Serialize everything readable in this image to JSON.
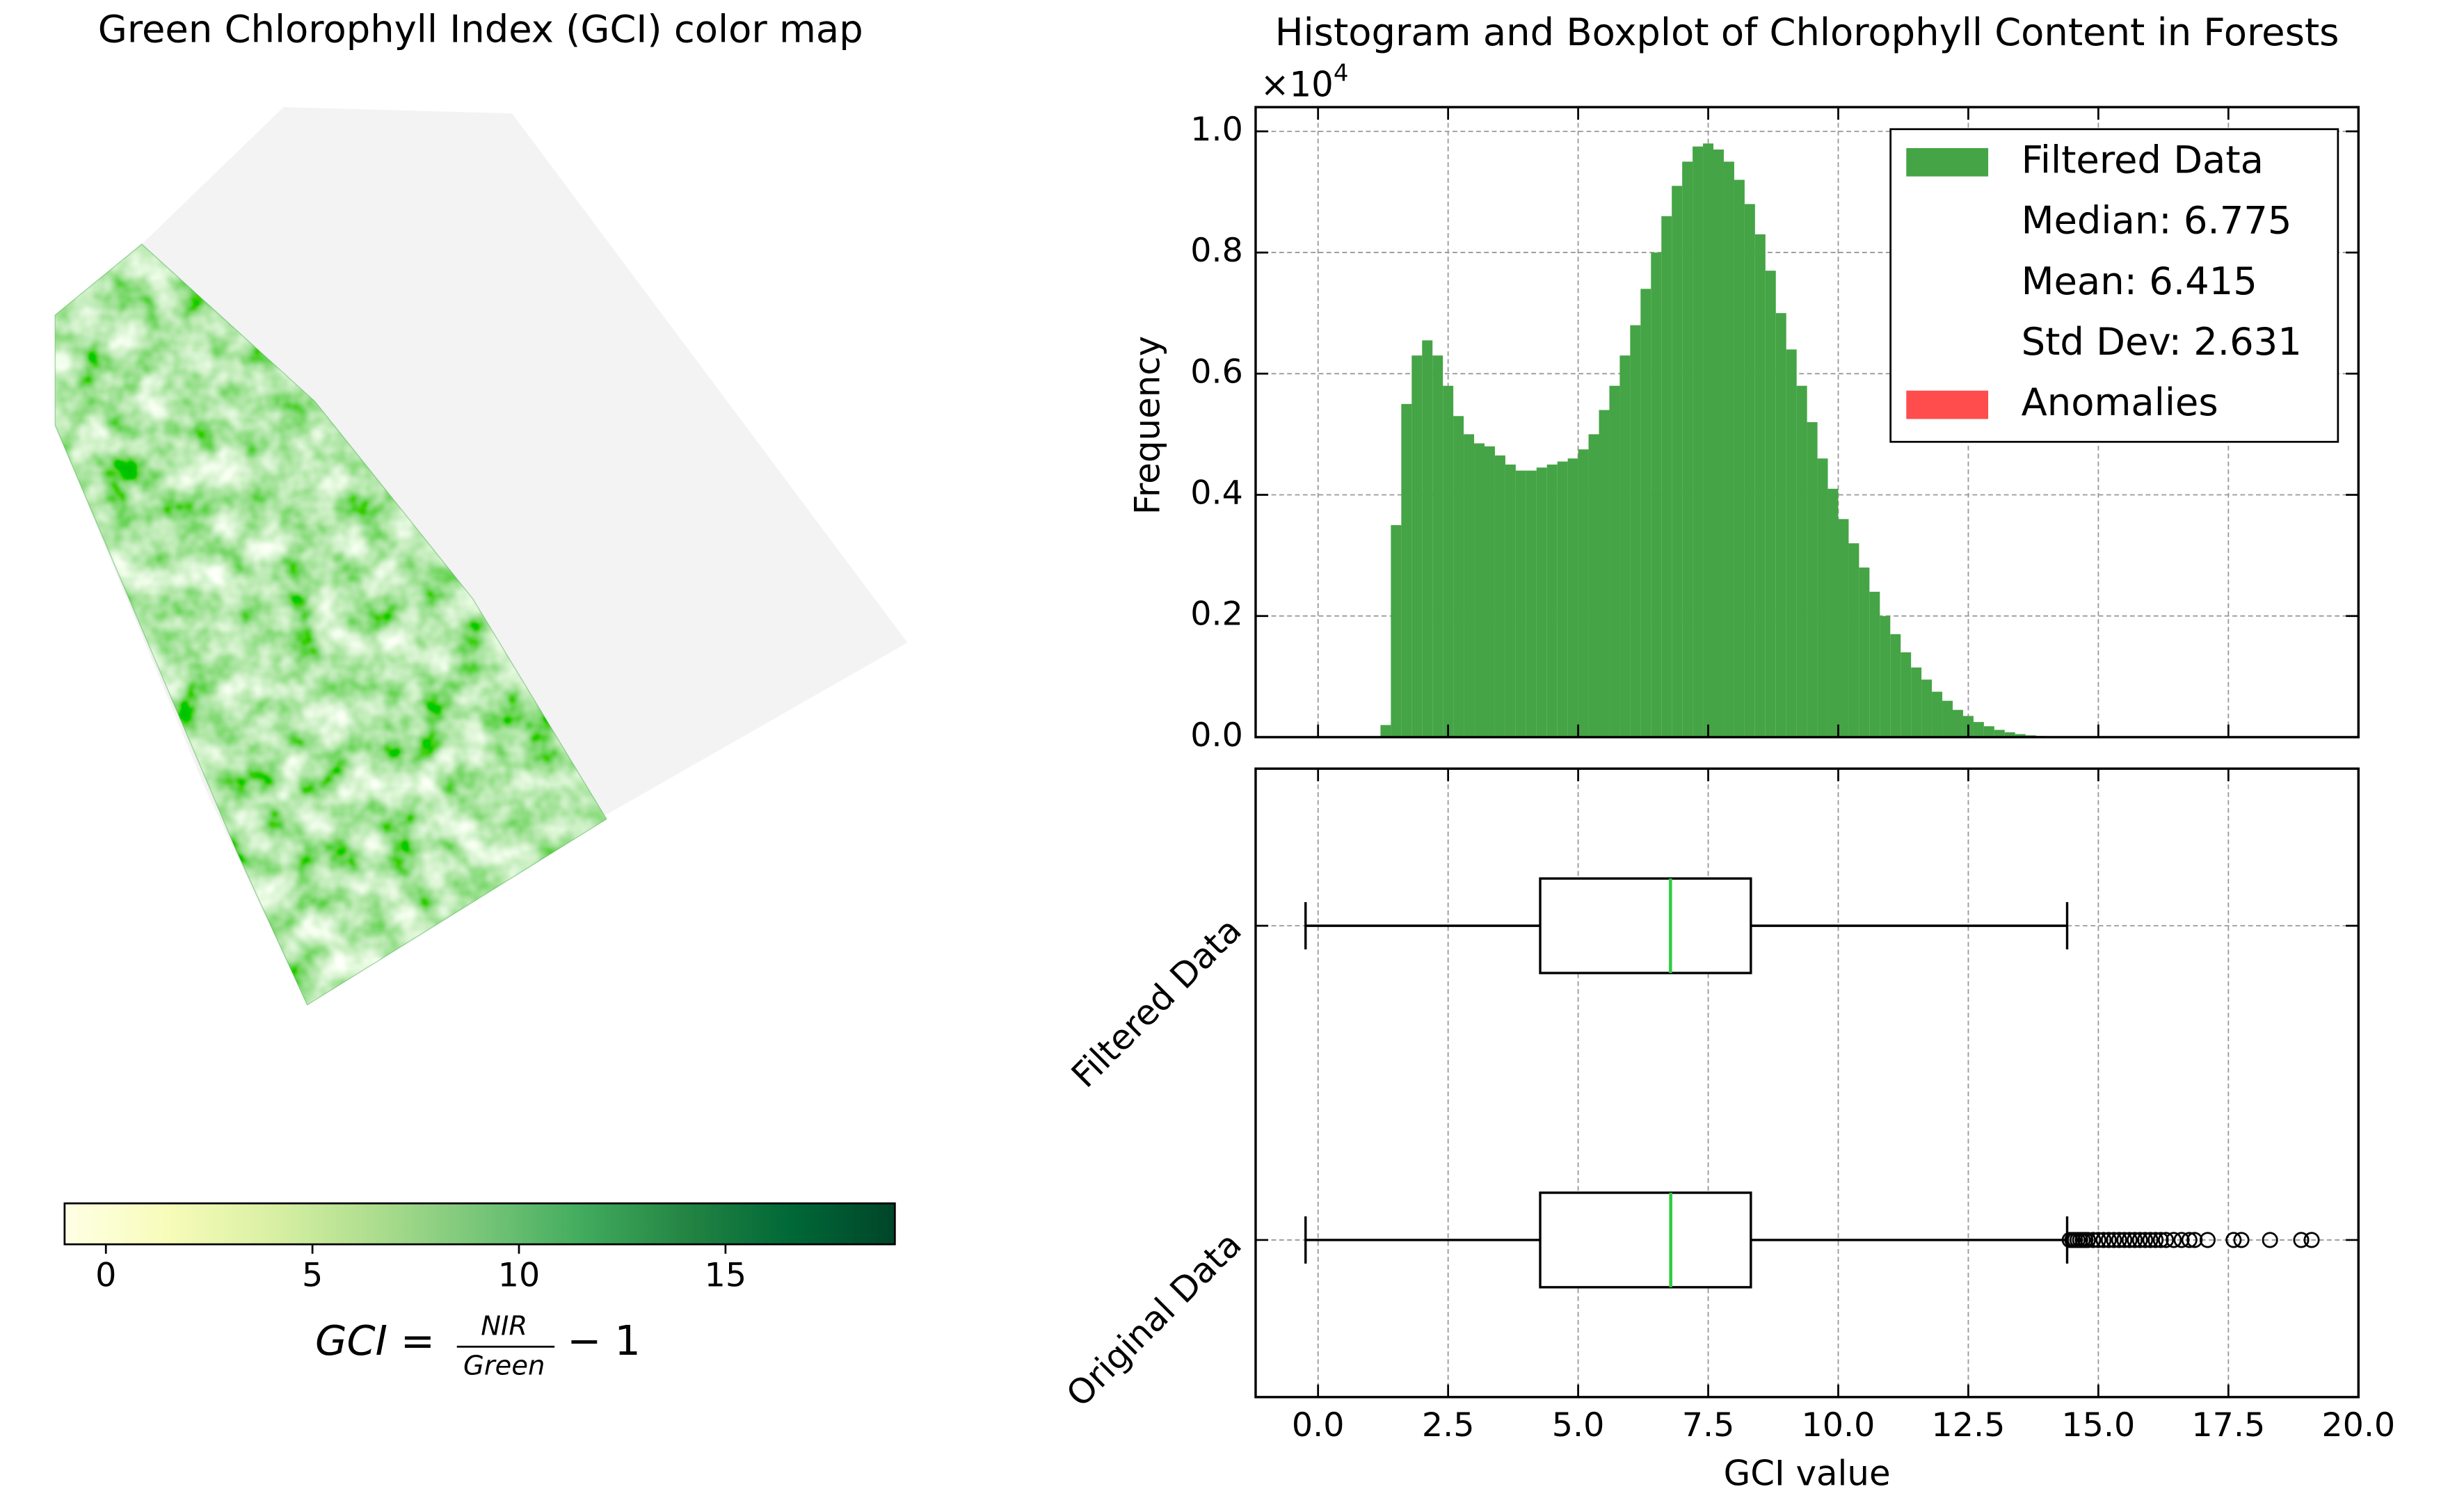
{
  "chart_data": [
    {
      "type": "image",
      "title": "Green Chlorophyll Index (GCI) color map",
      "colormap": [
        "#ffffe5",
        "#f7fcb9",
        "#d9f0a3",
        "#addd8e",
        "#78c679",
        "#41ab5d",
        "#238443",
        "#006837",
        "#004529"
      ],
      "clim": [
        -1,
        19.1
      ],
      "colorbar_ticks": [
        0,
        5,
        10,
        15
      ],
      "colorbar_label": {
        "lhs": "GCI =",
        "numerator": "NIR",
        "denominator": "Green",
        "rhs": "− 1"
      }
    },
    {
      "type": "histogram",
      "title": "Histogram and Boxplot of Chlorophyll Content in Forests",
      "y_label": "Frequency",
      "offset_label": {
        "base": "×10",
        "exponent": "4"
      },
      "bins": [
        1.0,
        1.2,
        1.4,
        1.6,
        1.8,
        2.0,
        2.2,
        2.4,
        2.6,
        2.8,
        3.0,
        3.2,
        3.4,
        3.6,
        3.8,
        4.0,
        4.2,
        4.4,
        4.6,
        4.8,
        5.0,
        5.2,
        5.4,
        5.6,
        5.8,
        6.0,
        6.2,
        6.4,
        6.6,
        6.8,
        7.0,
        7.2,
        7.4,
        7.6,
        7.8,
        8.0,
        8.2,
        8.4,
        8.6,
        8.8,
        9.0,
        9.2,
        9.4,
        9.6,
        9.8,
        10.0,
        10.2,
        10.4,
        10.6,
        10.8,
        11.0,
        11.2,
        11.4,
        11.6,
        11.8,
        12.0,
        12.2,
        12.4,
        12.6,
        12.8,
        13.0,
        13.2,
        13.4,
        13.6,
        13.8,
        14.0,
        14.2,
        14.4,
        14.6,
        14.8,
        15.0
      ],
      "series": [
        {
          "name": "Filtered Data",
          "color": "#45a445",
          "values": [
            0,
            0.02,
            0.35,
            0.55,
            0.63,
            0.655,
            0.63,
            0.58,
            0.53,
            0.5,
            0.485,
            0.48,
            0.465,
            0.45,
            0.44,
            0.44,
            0.445,
            0.45,
            0.455,
            0.46,
            0.475,
            0.5,
            0.54,
            0.58,
            0.63,
            0.68,
            0.74,
            0.8,
            0.86,
            0.91,
            0.95,
            0.975,
            0.98,
            0.97,
            0.95,
            0.92,
            0.88,
            0.83,
            0.77,
            0.7,
            0.64,
            0.58,
            0.52,
            0.46,
            0.41,
            0.36,
            0.32,
            0.28,
            0.24,
            0.2,
            0.17,
            0.14,
            0.115,
            0.095,
            0.075,
            0.06,
            0.045,
            0.035,
            0.025,
            0.018,
            0.012,
            0.008,
            0.005,
            0.003,
            0.002,
            0.001,
            0.0005,
            0,
            0,
            0
          ]
        },
        {
          "name": "Anomalies",
          "color": "#ff4d4d",
          "values": []
        }
      ],
      "legend_notes": [
        "Median: 6.775",
        "Mean: 6.415",
        "Std Dev: 2.631"
      ],
      "legend_position": "upper right",
      "xlim": [
        -1.2,
        20
      ],
      "ylim": [
        0,
        1.04
      ],
      "yticks": [
        {
          "value": 0,
          "label": "0.0"
        },
        {
          "value": 0.2,
          "label": "0.2"
        },
        {
          "value": 0.4,
          "label": "0.4"
        },
        {
          "value": 0.6,
          "label": "0.6"
        },
        {
          "value": 0.8,
          "label": "0.8"
        },
        {
          "value": 1.0,
          "label": "1.0"
        }
      ],
      "grid": true
    },
    {
      "type": "boxplot",
      "x_label": "GCI value",
      "categories": [
        "Original Data",
        "Filtered Data"
      ],
      "boxes": [
        {
          "whislo": -0.24,
          "q1": 4.27,
          "median": 6.78,
          "q3": 8.32,
          "whishi": 14.4,
          "fliers": [
            14.45,
            14.5,
            14.55,
            14.6,
            14.65,
            14.7,
            14.75,
            14.8,
            14.9,
            15.0,
            15.1,
            15.2,
            15.3,
            15.4,
            15.5,
            15.6,
            15.7,
            15.8,
            15.9,
            16.0,
            16.1,
            16.2,
            16.3,
            16.45,
            16.6,
            16.75,
            16.85,
            17.1,
            17.6,
            17.75,
            18.3,
            18.9,
            19.1
          ]
        },
        {
          "whislo": -0.24,
          "q1": 4.27,
          "median": 6.775,
          "q3": 8.32,
          "whishi": 14.4,
          "fliers": []
        }
      ],
      "box_color": "#000000",
      "median_color": "#2ecc40",
      "xlim": [
        -1.2,
        20
      ],
      "ylim": [
        0.5,
        2.5
      ],
      "xticks": [
        {
          "value": 0,
          "label": "0.0"
        },
        {
          "value": 2.5,
          "label": "2.5"
        },
        {
          "value": 5,
          "label": "5.0"
        },
        {
          "value": 7.5,
          "label": "7.5"
        },
        {
          "value": 10,
          "label": "10.0"
        },
        {
          "value": 12.5,
          "label": "12.5"
        },
        {
          "value": 15,
          "label": "15.0"
        },
        {
          "value": 17.5,
          "label": "17.5"
        },
        {
          "value": 20,
          "label": "20.0"
        }
      ],
      "grid": true
    }
  ]
}
